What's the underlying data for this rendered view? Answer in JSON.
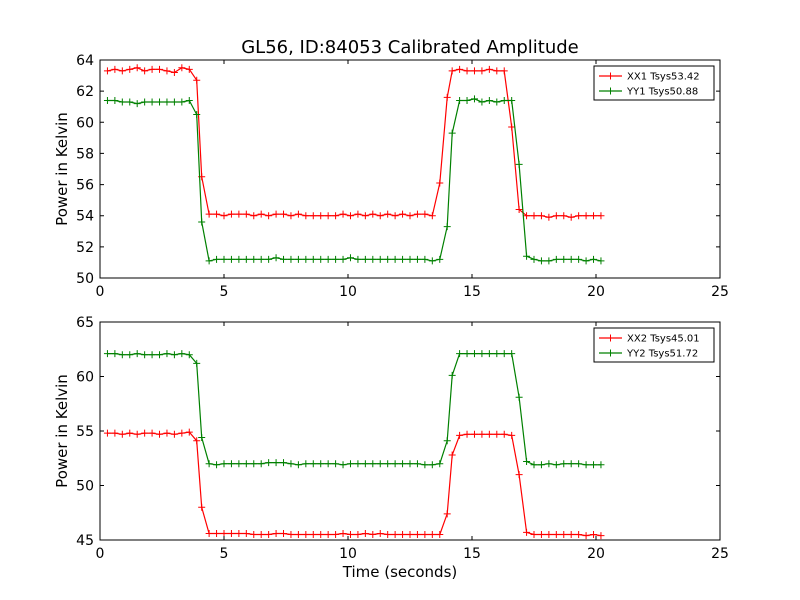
{
  "figure_title": "GL56, ID:84053 Calibrated Amplitude",
  "chart_data": [
    {
      "type": "line",
      "ylabel": "Power in Kelvin",
      "xlabel": "",
      "xlim": [
        0,
        25
      ],
      "ylim": [
        50,
        64
      ],
      "xticks": [
        0,
        5,
        10,
        15,
        20,
        25
      ],
      "yticks": [
        50,
        52,
        54,
        56,
        58,
        60,
        62,
        64
      ],
      "legend_position": "top-right",
      "x": [
        0.3,
        0.6,
        0.9,
        1.2,
        1.5,
        1.8,
        2.1,
        2.4,
        2.7,
        3.0,
        3.3,
        3.6,
        3.9,
        4.1,
        4.4,
        4.7,
        5.0,
        5.3,
        5.6,
        5.9,
        6.2,
        6.5,
        6.8,
        7.1,
        7.4,
        7.7,
        8.0,
        8.3,
        8.6,
        8.9,
        9.2,
        9.5,
        9.8,
        10.1,
        10.4,
        10.7,
        11.0,
        11.3,
        11.6,
        11.9,
        12.2,
        12.5,
        12.8,
        13.1,
        13.4,
        13.7,
        14.0,
        14.2,
        14.5,
        14.8,
        15.1,
        15.4,
        15.7,
        16.0,
        16.3,
        16.6,
        16.9,
        17.2,
        17.5,
        17.8,
        18.1,
        18.4,
        18.7,
        19.0,
        19.3,
        19.6,
        19.9,
        20.2
      ],
      "series": [
        {
          "name": "XX1 Tsys53.42",
          "color": "#ff0000",
          "values": [
            63.3,
            63.4,
            63.3,
            63.4,
            63.5,
            63.3,
            63.4,
            63.4,
            63.3,
            63.2,
            63.5,
            63.4,
            62.7,
            56.5,
            54.1,
            54.1,
            54.0,
            54.1,
            54.1,
            54.1,
            54.0,
            54.1,
            54.0,
            54.1,
            54.1,
            54.0,
            54.1,
            54.0,
            54.0,
            54.0,
            54.0,
            54.0,
            54.1,
            54.0,
            54.1,
            54.0,
            54.1,
            54.0,
            54.1,
            54.0,
            54.1,
            54.0,
            54.1,
            54.1,
            54.0,
            56.1,
            61.6,
            63.3,
            63.4,
            63.3,
            63.3,
            63.3,
            63.4,
            63.3,
            63.3,
            59.7,
            54.4,
            54.0,
            54.0,
            54.0,
            53.9,
            54.0,
            54.0,
            53.9,
            54.0,
            54.0,
            54.0,
            54.0
          ]
        },
        {
          "name": "YY1 Tsys50.88",
          "color": "#008000",
          "values": [
            61.4,
            61.4,
            61.3,
            61.3,
            61.2,
            61.3,
            61.3,
            61.3,
            61.3,
            61.3,
            61.3,
            61.4,
            60.5,
            53.6,
            51.1,
            51.2,
            51.2,
            51.2,
            51.2,
            51.2,
            51.2,
            51.2,
            51.2,
            51.3,
            51.2,
            51.2,
            51.2,
            51.2,
            51.2,
            51.2,
            51.2,
            51.2,
            51.2,
            51.3,
            51.2,
            51.2,
            51.2,
            51.2,
            51.2,
            51.2,
            51.2,
            51.2,
            51.2,
            51.2,
            51.1,
            51.2,
            53.3,
            59.3,
            61.4,
            61.4,
            61.5,
            61.3,
            61.4,
            61.3,
            61.4,
            61.4,
            57.3,
            51.4,
            51.2,
            51.1,
            51.1,
            51.2,
            51.2,
            51.2,
            51.2,
            51.1,
            51.2,
            51.1
          ]
        }
      ]
    },
    {
      "type": "line",
      "ylabel": "Power in Kelvin",
      "xlabel": "Time (seconds)",
      "xlim": [
        0,
        25
      ],
      "ylim": [
        45,
        65
      ],
      "xticks": [
        0,
        5,
        10,
        15,
        20,
        25
      ],
      "yticks": [
        45,
        50,
        55,
        60,
        65
      ],
      "legend_position": "top-right",
      "x": [
        0.3,
        0.6,
        0.9,
        1.2,
        1.5,
        1.8,
        2.1,
        2.4,
        2.7,
        3.0,
        3.3,
        3.6,
        3.9,
        4.1,
        4.4,
        4.7,
        5.0,
        5.3,
        5.6,
        5.9,
        6.2,
        6.5,
        6.8,
        7.1,
        7.4,
        7.7,
        8.0,
        8.3,
        8.6,
        8.9,
        9.2,
        9.5,
        9.8,
        10.1,
        10.4,
        10.7,
        11.0,
        11.3,
        11.6,
        11.9,
        12.2,
        12.5,
        12.8,
        13.1,
        13.4,
        13.7,
        14.0,
        14.2,
        14.5,
        14.8,
        15.1,
        15.4,
        15.7,
        16.0,
        16.3,
        16.6,
        16.9,
        17.2,
        17.5,
        17.8,
        18.1,
        18.4,
        18.7,
        19.0,
        19.3,
        19.6,
        19.9,
        20.2
      ],
      "series": [
        {
          "name": "XX2 Tsys45.01",
          "color": "#ff0000",
          "values": [
            54.8,
            54.8,
            54.7,
            54.8,
            54.7,
            54.8,
            54.8,
            54.7,
            54.8,
            54.7,
            54.8,
            54.9,
            54.1,
            48.0,
            45.6,
            45.6,
            45.6,
            45.6,
            45.6,
            45.6,
            45.5,
            45.5,
            45.5,
            45.6,
            45.6,
            45.5,
            45.5,
            45.5,
            45.5,
            45.5,
            45.5,
            45.5,
            45.6,
            45.5,
            45.5,
            45.6,
            45.5,
            45.6,
            45.5,
            45.5,
            45.5,
            45.5,
            45.5,
            45.5,
            45.5,
            45.5,
            47.4,
            52.8,
            54.6,
            54.7,
            54.7,
            54.7,
            54.7,
            54.7,
            54.7,
            54.6,
            51.0,
            45.7,
            45.5,
            45.5,
            45.5,
            45.5,
            45.5,
            45.5,
            45.5,
            45.4,
            45.5,
            45.4
          ]
        },
        {
          "name": "YY2 Tsys51.72",
          "color": "#008000",
          "values": [
            62.1,
            62.1,
            62.0,
            62.0,
            62.1,
            62.0,
            62.0,
            62.0,
            62.1,
            62.0,
            62.1,
            62.0,
            61.2,
            54.4,
            52.0,
            51.9,
            52.0,
            52.0,
            52.0,
            52.0,
            52.0,
            52.0,
            52.1,
            52.1,
            52.1,
            52.0,
            51.9,
            52.0,
            52.0,
            52.0,
            52.0,
            52.0,
            51.9,
            52.0,
            52.0,
            52.0,
            52.0,
            52.0,
            52.0,
            52.0,
            52.0,
            52.0,
            52.0,
            51.9,
            51.9,
            52.0,
            54.1,
            60.1,
            62.1,
            62.1,
            62.1,
            62.1,
            62.1,
            62.1,
            62.1,
            62.1,
            58.1,
            52.2,
            51.9,
            51.9,
            52.0,
            51.9,
            52.0,
            52.0,
            52.0,
            51.9,
            51.9,
            51.9
          ]
        }
      ]
    }
  ]
}
